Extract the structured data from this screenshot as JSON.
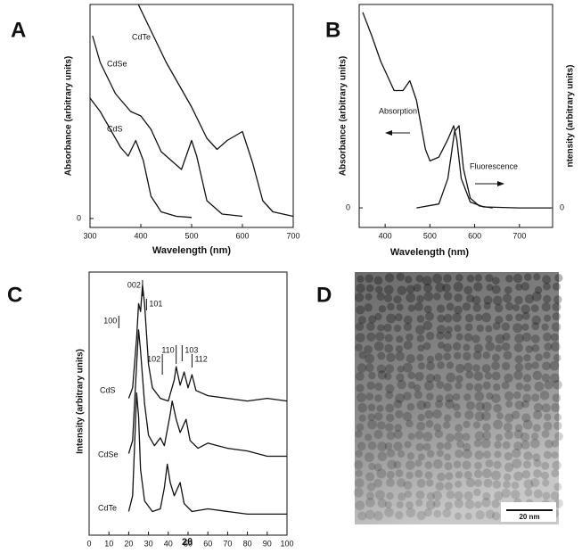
{
  "panel_labels": [
    "A",
    "B",
    "C",
    "D"
  ],
  "chart_data": [
    {
      "type": "line",
      "xlabel": "Wavelength (nm)",
      "ylabel": "Absorbance (arbitrary units)",
      "xlim": [
        300,
        700
      ],
      "xticks": [
        300,
        400,
        500,
        600,
        700
      ],
      "ylim": [
        -0.4,
        9.6
      ],
      "yticks": [
        0
      ],
      "series": [
        {
          "name": "CdS",
          "color": "#111111",
          "x": [
            300,
            320,
            340,
            360,
            375,
            390,
            405,
            420,
            440,
            470,
            500
          ],
          "values": [
            5.4,
            4.8,
            4.0,
            3.2,
            2.8,
            3.5,
            2.6,
            1.0,
            0.3,
            0.1,
            0.05
          ]
        },
        {
          "name": "CdSe",
          "color": "#111111",
          "x": [
            305,
            320,
            350,
            380,
            400,
            420,
            440,
            460,
            480,
            500,
            510,
            530,
            560,
            600
          ],
          "values": [
            8.2,
            7.0,
            5.6,
            4.8,
            4.6,
            4.0,
            3.0,
            2.6,
            2.2,
            3.5,
            2.8,
            0.8,
            0.2,
            0.1
          ]
        },
        {
          "name": "CdTe",
          "color": "#111111",
          "x": [
            395,
            450,
            500,
            530,
            550,
            570,
            600,
            620,
            640,
            660,
            700
          ],
          "values": [
            9.6,
            7.0,
            5.0,
            3.6,
            3.1,
            3.5,
            3.9,
            2.5,
            0.8,
            0.3,
            0.1
          ]
        }
      ]
    },
    {
      "type": "line",
      "xlabel": "Wavelength (nm)",
      "ylabel": "Absorbance (arbitrary units)",
      "y2label": "ntensity (arbitrary units)",
      "xlim": [
        342,
        774
      ],
      "xticks": [
        400,
        500,
        600,
        700
      ],
      "ylim": [
        -1,
        10.4
      ],
      "yticks": [
        0
      ],
      "y2lim": [
        -1,
        10.4
      ],
      "y2ticks": [
        0
      ],
      "series": [
        {
          "name": "Absorption",
          "color": "#111111",
          "x": [
            350,
            370,
            390,
            420,
            440,
            455,
            470,
            490,
            500,
            520,
            540,
            553,
            560,
            570,
            590,
            620,
            700,
            770
          ],
          "values": [
            10,
            8.8,
            7.5,
            6.0,
            6.0,
            6.5,
            5.5,
            3.0,
            2.4,
            2.6,
            3.5,
            4.2,
            3.5,
            1.5,
            0.3,
            0.05,
            0,
            0
          ]
        },
        {
          "name": "Fluorescence",
          "color": "#111111",
          "axis": "y2",
          "x": [
            470,
            520,
            540,
            555,
            565,
            575,
            590,
            610,
            640
          ],
          "values": [
            0,
            0.2,
            1.5,
            3.9,
            4.2,
            2.0,
            0.5,
            0.1,
            0
          ]
        }
      ]
    },
    {
      "type": "line",
      "xlabel": "2θ",
      "ylabel": "Intensity (arbitrary units)",
      "xlim": [
        0,
        100
      ],
      "xticks": [
        0,
        10,
        20,
        30,
        40,
        50,
        60,
        70,
        80,
        90,
        100
      ],
      "ylim": [
        0,
        10
      ],
      "series": [
        {
          "name": "CdS",
          "color": "#111111",
          "x": [
            20,
            22,
            24,
            25,
            26,
            27,
            28,
            30,
            32,
            36,
            40,
            43,
            44,
            46,
            48,
            50,
            52,
            54,
            60,
            70,
            80,
            90,
            100
          ],
          "values": [
            5.2,
            5.6,
            7.5,
            8.8,
            8.5,
            9.5,
            8.8,
            6.5,
            5.6,
            5.2,
            5.1,
            5.9,
            6.4,
            5.7,
            6.2,
            5.6,
            6.1,
            5.5,
            5.3,
            5.2,
            5.1,
            5.2,
            5.1
          ]
        },
        {
          "name": "CdSe",
          "color": "#111111",
          "x": [
            20,
            22,
            24,
            25,
            26,
            28,
            30,
            33,
            36,
            38,
            41,
            42,
            44,
            46,
            49,
            51,
            55,
            60,
            65,
            70,
            80,
            90,
            100
          ],
          "values": [
            3.1,
            3.6,
            6.5,
            7.8,
            7.0,
            5.0,
            3.8,
            3.4,
            3.7,
            3.4,
            4.6,
            5.1,
            4.4,
            3.9,
            4.4,
            3.6,
            3.3,
            3.5,
            3.4,
            3.3,
            3.2,
            3.0,
            3.0
          ]
        },
        {
          "name": "CdTe",
          "color": "#111111",
          "x": [
            20,
            22,
            23,
            24,
            25,
            26,
            28,
            32,
            36,
            38,
            39.5,
            41,
            43,
            46,
            48,
            52,
            60,
            70,
            80,
            90,
            100
          ],
          "values": [
            0.9,
            1.5,
            3.5,
            5.4,
            4.5,
            2.5,
            1.3,
            0.9,
            1.0,
            1.8,
            2.7,
            2.0,
            1.5,
            2.0,
            1.2,
            0.9,
            1.0,
            0.9,
            0.8,
            0.8,
            0.8
          ]
        }
      ],
      "annotations": [
        {
          "text": "100",
          "x": 15
        },
        {
          "text": "002",
          "x": 27
        },
        {
          "text": "101",
          "x": 29
        },
        {
          "text": "102",
          "x": 37
        },
        {
          "text": "110",
          "x": 44
        },
        {
          "text": "103",
          "x": 47
        },
        {
          "text": "112",
          "x": 52
        }
      ]
    }
  ],
  "image": {
    "scale_bar": "20 nm"
  }
}
